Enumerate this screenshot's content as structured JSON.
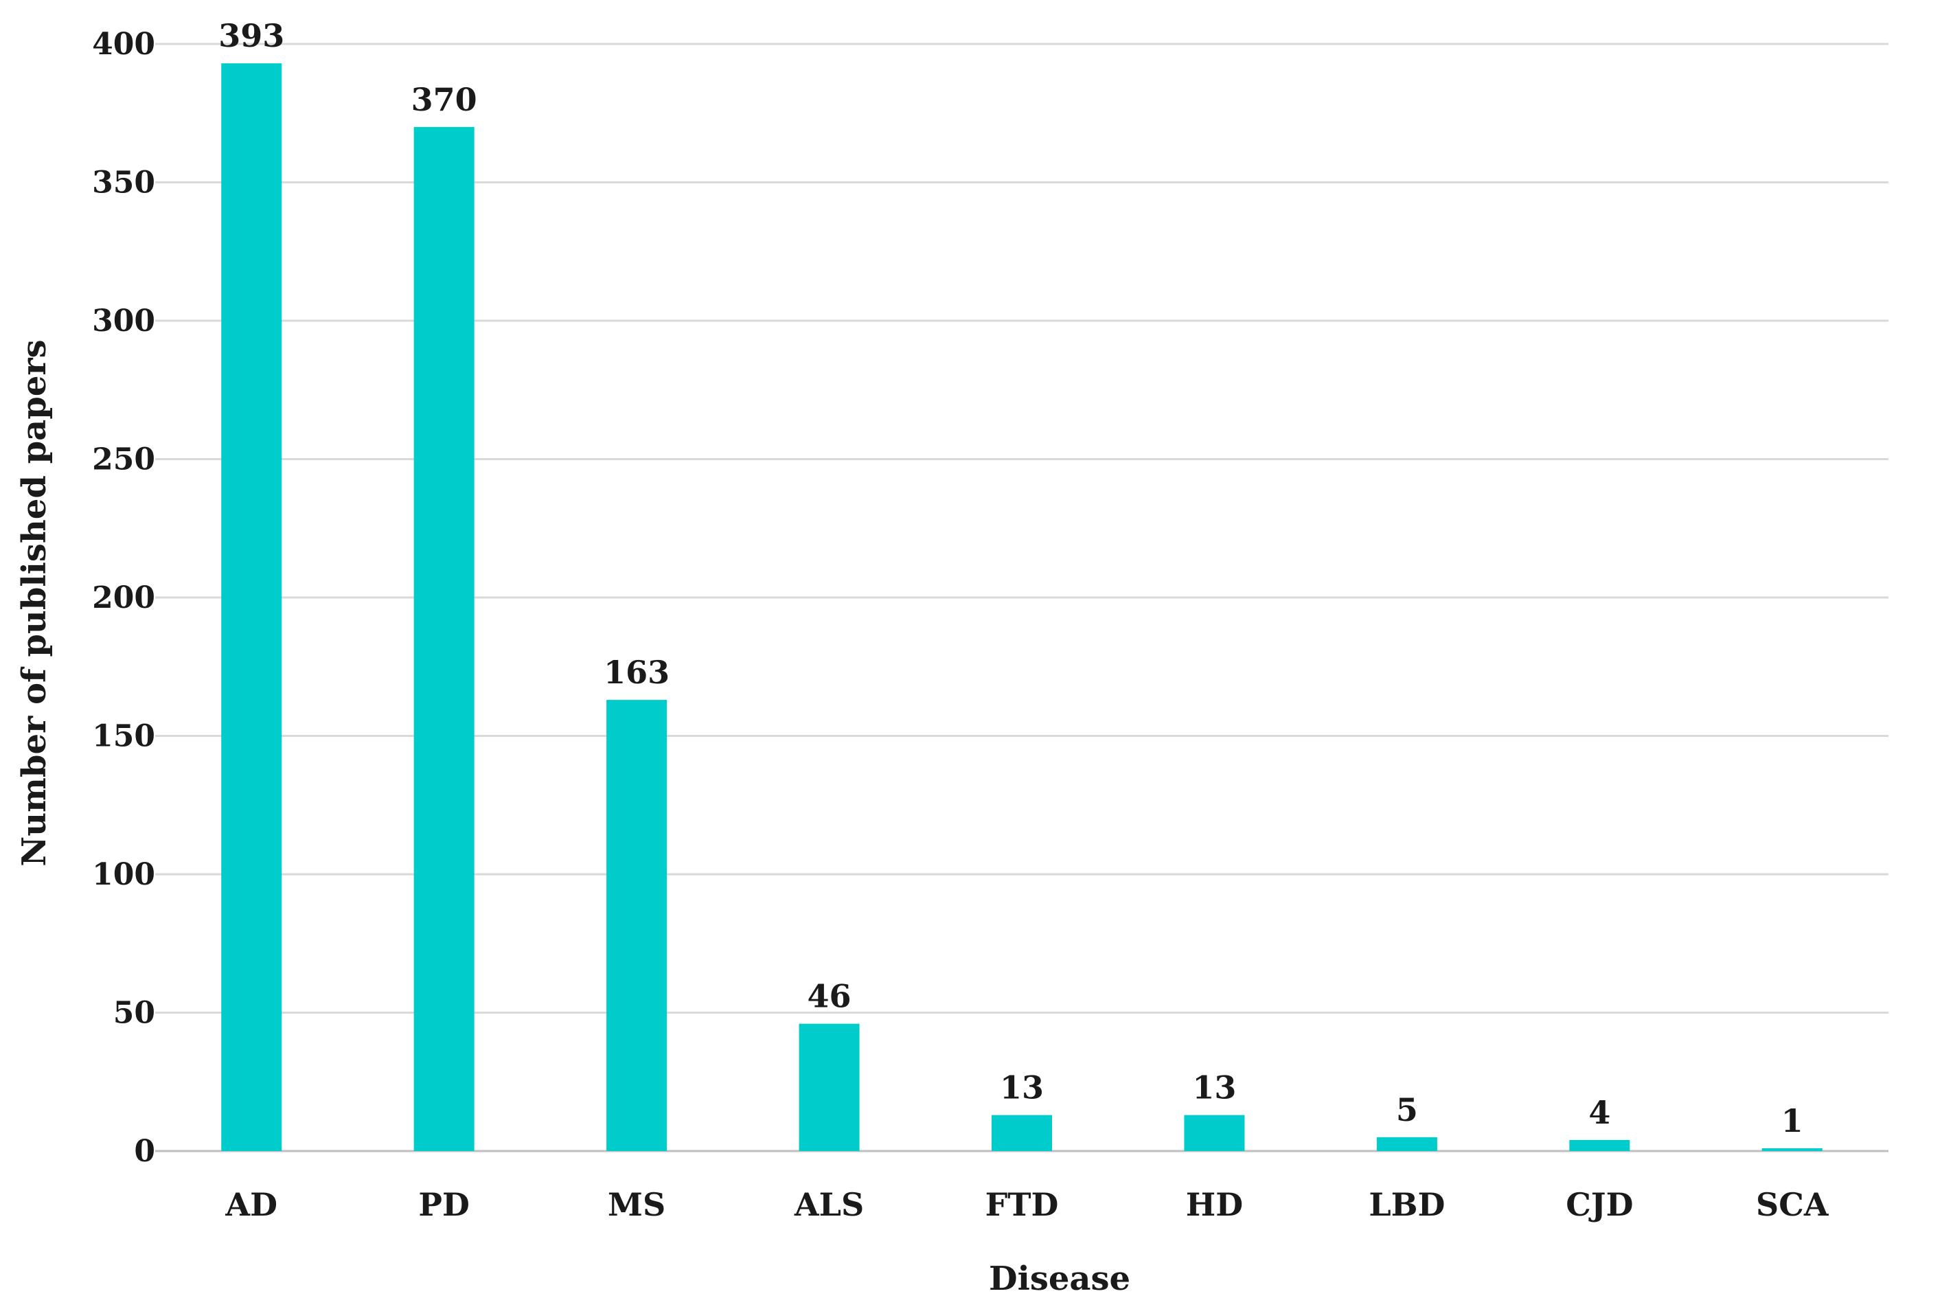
{
  "chart_data": {
    "type": "bar",
    "title": "",
    "xlabel": "Disease",
    "ylabel": "Number of published  papers",
    "categories": [
      "AD",
      "PD",
      "MS",
      "ALS",
      "FTD",
      "HD",
      "LBD",
      "CJD",
      "SCA"
    ],
    "series": [
      {
        "values": [
          393,
          370,
          163,
          46,
          13,
          13,
          5,
          4,
          1
        ]
      }
    ],
    "data_labels": [
      "393",
      "370",
      "163",
      "46",
      "13",
      "13",
      "5",
      "4",
      "1"
    ],
    "ylim": [
      0,
      400
    ],
    "yticks": [
      0,
      50,
      100,
      150,
      200,
      250,
      300,
      350,
      400
    ],
    "grid": true,
    "legend": "none",
    "bar_color": "#00cccc"
  }
}
